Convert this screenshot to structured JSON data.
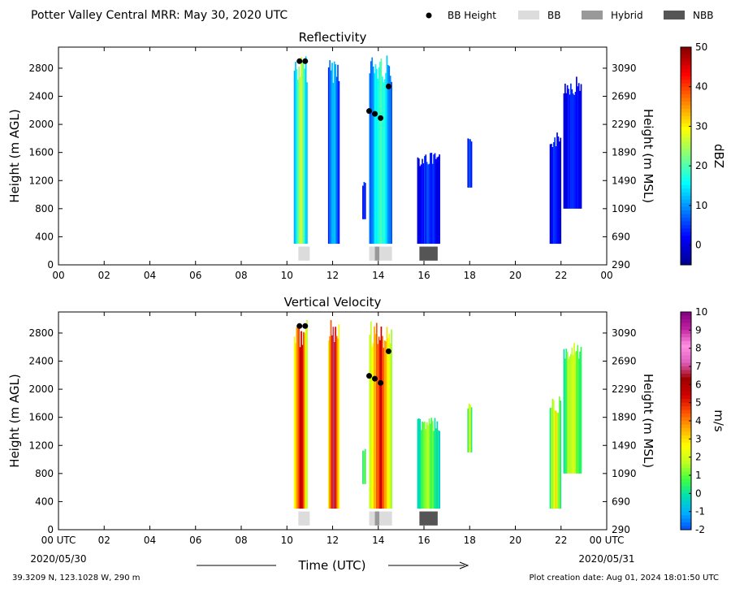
{
  "header": {
    "title": "Potter Valley Central MRR:  May 30, 2020 UTC",
    "legend": [
      {
        "label": "BB Height",
        "kind": "dot",
        "color": "#000000"
      },
      {
        "label": "BB",
        "kind": "rect",
        "color": "#dcdcdc"
      },
      {
        "label": "Hybrid",
        "kind": "rect",
        "color": "#999999"
      },
      {
        "label": "NBB",
        "kind": "rect",
        "color": "#555555"
      }
    ]
  },
  "footer": {
    "location": "39.3209 N, 123.1028 W, 290 m",
    "creation": "Plot creation date: Aug 01, 2024 18:01:50 UTC",
    "xlabel": "Time (UTC)",
    "start_date": "2020/05/30",
    "end_date": "2020/05/31"
  },
  "colors": {
    "bb": "#dcdcdc",
    "hybrid": "#999999",
    "nbb": "#555555",
    "dot": "#000000",
    "refl_scale": [
      "#00008f",
      "#0000ff",
      "#0080ff",
      "#00ffff",
      "#80ff80",
      "#ffff00",
      "#ff8000",
      "#ff0000",
      "#800000"
    ],
    "vel_scale": [
      "#0050ff",
      "#00b0ff",
      "#00e0b0",
      "#40ff40",
      "#c0ff20",
      "#ffff00",
      "#ffb000",
      "#ff5000",
      "#d00000",
      "#a00000",
      "#e060c0",
      "#ff90e0",
      "#c020a0",
      "#800080"
    ]
  },
  "chart_data": [
    {
      "type": "heatmap",
      "title": "Reflectivity",
      "ylabel": "Height (m AGL)",
      "y2label": "Height (m MSL)",
      "xlim": [
        0,
        24
      ],
      "ylim": [
        0,
        3100
      ],
      "xticks": [
        "00",
        "02",
        "04",
        "06",
        "08",
        "10",
        "12",
        "14",
        "16",
        "18",
        "20",
        "22",
        "00"
      ],
      "yticks": [
        0,
        400,
        800,
        1200,
        1600,
        2000,
        2400,
        2800
      ],
      "y2ticks": [
        290,
        690,
        1090,
        1490,
        1890,
        2290,
        2690,
        3090
      ],
      "colorbar": {
        "label": "dBZ",
        "min": -5,
        "max": 50,
        "ticks": [
          0,
          10,
          20,
          30,
          40,
          50
        ]
      },
      "echo_columns": [
        {
          "t0": 10.3,
          "t1": 10.9,
          "top": 2990,
          "bottom": 300,
          "core": 28
        },
        {
          "t0": 11.8,
          "t1": 12.3,
          "top": 2990,
          "bottom": 300,
          "core": 14
        },
        {
          "t0": 13.3,
          "t1": 13.45,
          "top": 1200,
          "bottom": 650,
          "core": 6
        },
        {
          "t0": 13.6,
          "t1": 14.6,
          "top": 2990,
          "bottom": 300,
          "core": 20
        },
        {
          "t0": 15.7,
          "t1": 16.7,
          "top": 1600,
          "bottom": 300,
          "core": 6
        },
        {
          "t0": 17.9,
          "t1": 18.1,
          "top": 1800,
          "bottom": 1100,
          "core": 8
        },
        {
          "t0": 21.5,
          "t1": 22.0,
          "top": 1900,
          "bottom": 300,
          "core": 6
        },
        {
          "t0": 22.1,
          "t1": 22.9,
          "top": 2700,
          "bottom": 800,
          "core": 4
        }
      ],
      "bb_heights": [
        {
          "t": 10.55,
          "h": 2900
        },
        {
          "t": 10.8,
          "h": 2900
        },
        {
          "t": 13.6,
          "h": 2190
        },
        {
          "t": 13.85,
          "h": 2150
        },
        {
          "t": 14.1,
          "h": 2090
        },
        {
          "t": 14.45,
          "h": 2540
        }
      ],
      "bb_types": [
        {
          "t0": 10.5,
          "t1": 11.0,
          "type": "bb"
        },
        {
          "t0": 13.6,
          "t1": 13.85,
          "type": "bb"
        },
        {
          "t0": 13.85,
          "t1": 14.05,
          "type": "hybrid"
        },
        {
          "t0": 14.05,
          "t1": 14.6,
          "type": "bb"
        },
        {
          "t0": 15.8,
          "t1": 16.6,
          "type": "nbb"
        }
      ]
    },
    {
      "type": "heatmap",
      "title": "Vertical Velocity",
      "ylabel": "Height (m AGL)",
      "y2label": "Height (m MSL)",
      "xlim": [
        0,
        24
      ],
      "ylim": [
        0,
        3100
      ],
      "xticks": [
        "00 UTC",
        "02",
        "04",
        "06",
        "08",
        "10",
        "12",
        "14",
        "16",
        "18",
        "20",
        "22",
        "00 UTC"
      ],
      "yticks": [
        0,
        400,
        800,
        1200,
        1600,
        2000,
        2400,
        2800
      ],
      "y2ticks": [
        290,
        690,
        1090,
        1490,
        1890,
        2290,
        2690,
        3090
      ],
      "colorbar": {
        "label": "m/s",
        "min": -2,
        "max": 10,
        "ticks": [
          -2,
          -1,
          0,
          1,
          2,
          3,
          4,
          5,
          6,
          7,
          8,
          9,
          10
        ]
      },
      "echo_columns": [
        {
          "t0": 10.3,
          "t1": 10.9,
          "top": 2990,
          "bottom": 300,
          "core": 6
        },
        {
          "t0": 11.8,
          "t1": 12.3,
          "top": 2990,
          "bottom": 300,
          "core": 7
        },
        {
          "t0": 13.3,
          "t1": 13.45,
          "top": 1200,
          "bottom": 650,
          "core": 1.5
        },
        {
          "t0": 13.6,
          "t1": 14.6,
          "top": 2990,
          "bottom": 300,
          "core": 5.5
        },
        {
          "t0": 15.7,
          "t1": 16.7,
          "top": 1600,
          "bottom": 300,
          "core": 1.5
        },
        {
          "t0": 17.9,
          "t1": 18.1,
          "top": 1800,
          "bottom": 1100,
          "core": 2.5
        },
        {
          "t0": 21.5,
          "t1": 22.0,
          "top": 1900,
          "bottom": 300,
          "core": 3
        },
        {
          "t0": 22.1,
          "t1": 22.9,
          "top": 2700,
          "bottom": 800,
          "core": 2.5
        }
      ],
      "bb_heights": [
        {
          "t": 10.55,
          "h": 2900
        },
        {
          "t": 10.8,
          "h": 2900
        },
        {
          "t": 13.6,
          "h": 2190
        },
        {
          "t": 13.85,
          "h": 2150
        },
        {
          "t": 14.1,
          "h": 2090
        },
        {
          "t": 14.45,
          "h": 2540
        }
      ],
      "bb_types": [
        {
          "t0": 10.5,
          "t1": 11.0,
          "type": "bb"
        },
        {
          "t0": 13.6,
          "t1": 13.85,
          "type": "bb"
        },
        {
          "t0": 13.85,
          "t1": 14.05,
          "type": "hybrid"
        },
        {
          "t0": 14.05,
          "t1": 14.6,
          "type": "bb"
        },
        {
          "t0": 15.8,
          "t1": 16.6,
          "type": "nbb"
        }
      ]
    }
  ]
}
